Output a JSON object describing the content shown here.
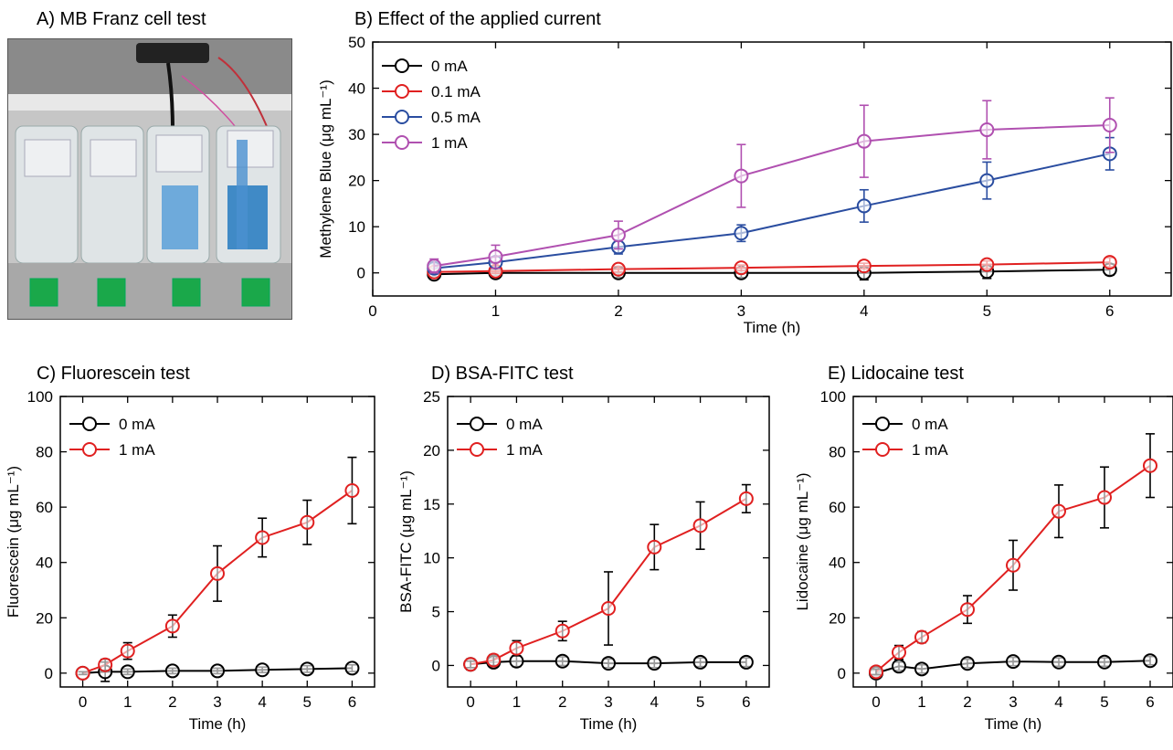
{
  "panels": {
    "a_title": "A) MB Franz cell test",
    "b_title": "B) Effect of the applied current",
    "c_title": "C) Fluorescein test",
    "d_title": "D) BSA-FITC test",
    "e_title": "E) Lidocaine test"
  },
  "photo": {
    "description_icon": "franz-cell-photo",
    "colors": {
      "background": "#c9c9c9",
      "blue_solution": "#3a86c8",
      "switch_green": "#1aa84a",
      "base": "#a7a7a7"
    }
  },
  "chart_data": [
    {
      "id": "B",
      "type": "line",
      "title": "B) Effect of the applied current",
      "xlabel": "Time (h)",
      "ylabel": "Methylene Blue (μg mL⁻¹)",
      "xlim": [
        0,
        6.5
      ],
      "ylim": [
        -5,
        50
      ],
      "xticks": [
        0,
        1,
        2,
        3,
        4,
        5,
        6
      ],
      "yticks": [
        0,
        10,
        20,
        30,
        40,
        50
      ],
      "x": [
        0.5,
        1,
        2,
        3,
        4,
        5,
        6
      ],
      "legend_position": "top-left",
      "series": [
        {
          "name": "0 mA",
          "color": "#000000",
          "values": [
            -0.3,
            0.0,
            0.0,
            0.0,
            0.0,
            0.3,
            0.7
          ],
          "errors": [
            0.5,
            0.5,
            1.0,
            1.0,
            1.5,
            1.5,
            1.2
          ]
        },
        {
          "name": "0.1 mA",
          "color": "#e02020",
          "values": [
            0.2,
            0.4,
            0.8,
            1.1,
            1.5,
            1.8,
            2.3
          ],
          "errors": [
            0.5,
            0.5,
            0.6,
            0.6,
            0.6,
            0.8,
            1.0
          ]
        },
        {
          "name": "0.5 mA",
          "color": "#2a4da0",
          "values": [
            1.0,
            2.3,
            5.6,
            8.6,
            14.5,
            20.0,
            25.8
          ],
          "errors": [
            1.0,
            1.2,
            1.5,
            1.8,
            3.5,
            4.0,
            3.5
          ]
        },
        {
          "name": "1 mA",
          "color": "#b050b0",
          "values": [
            1.5,
            3.5,
            8.2,
            21.0,
            28.5,
            31.0,
            32.0
          ],
          "errors": [
            1.5,
            2.5,
            3.0,
            6.8,
            7.8,
            6.3,
            5.9
          ]
        }
      ]
    },
    {
      "id": "C",
      "type": "line",
      "title": "C) Fluorescein test",
      "xlabel": "Time (h)",
      "ylabel": "Fluorescein  (μg mL⁻¹)",
      "xlim": [
        -0.5,
        6.5
      ],
      "ylim": [
        -5,
        100
      ],
      "xticks": [
        0,
        1,
        2,
        3,
        4,
        5,
        6
      ],
      "yticks": [
        0,
        20,
        40,
        60,
        80,
        100
      ],
      "x": [
        0,
        0.5,
        1,
        2,
        3,
        4,
        5,
        6
      ],
      "legend_position": "top-left",
      "series": [
        {
          "name": "0 mA",
          "color": "#000000",
          "values": [
            0.0,
            0.5,
            0.5,
            0.8,
            0.8,
            1.2,
            1.5,
            1.8
          ],
          "errors": [
            0.5,
            3.5,
            1.0,
            1.0,
            1.0,
            1.0,
            1.2,
            1.2
          ]
        },
        {
          "name": "1 mA",
          "color": "#e02020",
          "values": [
            0.0,
            3.0,
            8.0,
            17.0,
            36.0,
            49.0,
            54.5,
            66.0
          ],
          "errors": [
            0.5,
            2.0,
            3.0,
            4.0,
            10.0,
            7.0,
            8.0,
            12.0
          ]
        }
      ]
    },
    {
      "id": "D",
      "type": "line",
      "title": "D) BSA-FITC test",
      "xlabel": "Time (h)",
      "ylabel": "BSA-FITC  (μg mL⁻¹)",
      "xlim": [
        -0.5,
        6.5
      ],
      "ylim": [
        -2,
        25
      ],
      "xticks": [
        0,
        1,
        2,
        3,
        4,
        5,
        6
      ],
      "yticks": [
        0,
        5,
        10,
        15,
        20,
        25
      ],
      "x": [
        0,
        0.5,
        1,
        2,
        3,
        4,
        5,
        6
      ],
      "legend_position": "top-left",
      "series": [
        {
          "name": "0 mA",
          "color": "#000000",
          "values": [
            0.1,
            0.3,
            0.4,
            0.4,
            0.2,
            0.2,
            0.3,
            0.3
          ],
          "errors": [
            0.5,
            0.4,
            0.5,
            0.4,
            0.4,
            0.4,
            0.4,
            0.4
          ]
        },
        {
          "name": "1 mA",
          "color": "#e02020",
          "values": [
            0.1,
            0.5,
            1.6,
            3.2,
            5.3,
            11.0,
            13.0,
            15.5
          ],
          "errors": [
            0.3,
            0.5,
            0.7,
            0.9,
            3.4,
            2.1,
            2.2,
            1.3
          ]
        }
      ]
    },
    {
      "id": "E",
      "type": "line",
      "title": "E) Lidocaine test",
      "xlabel": "Time (h)",
      "ylabel": "Lidocaine  (μg mL⁻¹)",
      "xlim": [
        -0.5,
        6.5
      ],
      "ylim": [
        -5,
        100
      ],
      "xticks": [
        0,
        1,
        2,
        3,
        4,
        5,
        6
      ],
      "yticks": [
        0,
        20,
        40,
        60,
        80,
        100
      ],
      "x": [
        0,
        0.5,
        1,
        2,
        3,
        4,
        5,
        6
      ],
      "legend_position": "top-left",
      "series": [
        {
          "name": "0 mA",
          "color": "#000000",
          "values": [
            0.0,
            2.5,
            1.5,
            3.5,
            4.2,
            4.0,
            4.0,
            4.5
          ],
          "errors": [
            1.0,
            1.5,
            1.5,
            1.5,
            1.5,
            1.5,
            1.5,
            1.5
          ]
        },
        {
          "name": "1 mA",
          "color": "#e02020",
          "values": [
            0.5,
            7.5,
            13.0,
            23.0,
            39.0,
            58.5,
            63.5,
            75.0
          ],
          "errors": [
            1.0,
            2.5,
            2.0,
            5.0,
            9.0,
            9.5,
            11.0,
            11.5
          ]
        }
      ]
    }
  ]
}
